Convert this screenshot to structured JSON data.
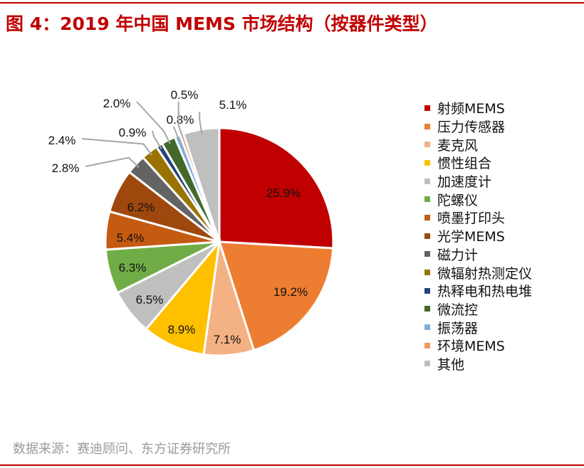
{
  "title": "图 4：2019 年中国 MEMS 市场结构（按器件类型）",
  "source": "数据来源：赛迪顾问、东方证券研究所",
  "chart_data": {
    "type": "pie",
    "title": "图 4：2019 年中国 MEMS 市场结构（按器件类型）",
    "start": "12 o'clock, clockwise",
    "legend_position": "right",
    "slices": [
      {
        "name": "射频MEMS",
        "value": 25.9,
        "label": "25.9%",
        "color": "#C00000"
      },
      {
        "name": "压力传感器",
        "value": 19.2,
        "label": "19.2%",
        "color": "#ED7D31"
      },
      {
        "name": "麦克风",
        "value": 7.1,
        "label": "7.1%",
        "color": "#F4B183"
      },
      {
        "name": "惯性组合",
        "value": 8.9,
        "label": "8.9%",
        "color": "#FFC000"
      },
      {
        "name": "加速度计",
        "value": 6.5,
        "label": "6.5%",
        "color": "#BFBFBF"
      },
      {
        "name": "陀螺仪",
        "value": 6.3,
        "label": "6.3%",
        "color": "#70AD47"
      },
      {
        "name": "喷墨打印头",
        "value": 5.4,
        "label": "5.4%",
        "color": "#C55A11"
      },
      {
        "name": "光学MEMS",
        "value": 6.2,
        "label": "6.2%",
        "color": "#9E480E"
      },
      {
        "name": "磁力计",
        "value": 2.8,
        "label": "2.8%",
        "color": "#636363"
      },
      {
        "name": "微辐射热测定仪",
        "value": 2.4,
        "label": "2.4%",
        "color": "#997300"
      },
      {
        "name": "热释电和热电堆",
        "value": 0.9,
        "label": "0.9%",
        "color": "#264478"
      },
      {
        "name": "微流控",
        "value": 2.0,
        "label": "2.0%",
        "color": "#43682B"
      },
      {
        "name": "振荡器",
        "value": 0.8,
        "label": "0.8%",
        "color": "#7CAFDD"
      },
      {
        "name": "环境MEMS",
        "value": 0.5,
        "label": "0.5%",
        "color": "#F1975A"
      },
      {
        "name": "其他",
        "value": 5.1,
        "label": "5.1%",
        "color": "#BFBFBF"
      }
    ]
  }
}
